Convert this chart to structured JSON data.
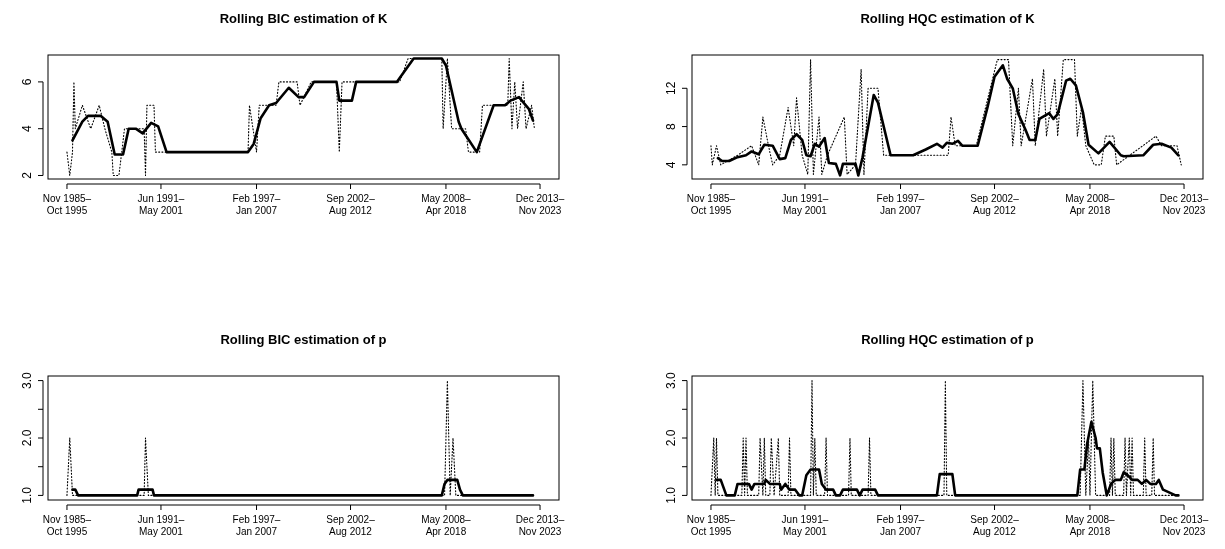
{
  "chart_data": [
    {
      "type": "line",
      "title": "Rolling BIC estimation of K",
      "xlim": [
        "1984-09-16",
        "2015-01-16"
      ],
      "xticks": [
        {
          "value": "1985-11",
          "label": "Nov 1985–\nOct 1995"
        },
        {
          "value": "1991-06",
          "label": "Jun 1991–\nMay 2001"
        },
        {
          "value": "1997-02",
          "label": "Feb 1997–\nJan 2007"
        },
        {
          "value": "2002-09",
          "label": "Sep 2002–\nAug 2012"
        },
        {
          "value": "2008-05",
          "label": "May 2008–\nApr 2018"
        },
        {
          "value": "2013-12",
          "label": "Dec 2013–\nNov 2023"
        }
      ],
      "ylim": [
        1.85,
        7.15
      ],
      "yticks": [
        2,
        4,
        6
      ],
      "series": [
        {
          "color": "#000000",
          "line_style": "dotted",
          "x": [
            "1985-11",
            "1986-01",
            "1986-03",
            "1986-04",
            "1986-05",
            "1986-10",
            "1987-04",
            "1987-10",
            "1988-02",
            "1988-07",
            "1988-08",
            "1988-12",
            "1989-02",
            "1989-04",
            "1990-06",
            "1990-07",
            "1990-08",
            "1991-01",
            "1991-02",
            "1991-06",
            "1996-08",
            "1996-09",
            "1997-02",
            "1997-04",
            "1998-04",
            "1998-06",
            "1999-07",
            "1999-09",
            "2000-05",
            "2001-11",
            "2002-01",
            "2002-03",
            "2005-08",
            "2006-02",
            "2008-02",
            "2008-03",
            "2008-06",
            "2008-09",
            "2009-07",
            "2009-09",
            "2010-05",
            "2010-07",
            "2012-01",
            "2012-02",
            "2012-04",
            "2012-06",
            "2012-08",
            "2012-12",
            "2013-02",
            "2013-06",
            "2013-08"
          ],
          "values": [
            3,
            2,
            3,
            6,
            4,
            5,
            4,
            5,
            4,
            3,
            2,
            2,
            3,
            4,
            4,
            2,
            5,
            5,
            3,
            3,
            3,
            5,
            3,
            5,
            5,
            6,
            6,
            5,
            6,
            6,
            3,
            6,
            6,
            7,
            7,
            4,
            7,
            4,
            4,
            3,
            3,
            5,
            5,
            7,
            4,
            6,
            4,
            6,
            4,
            5,
            4
          ]
        },
        {
          "color": "#000000",
          "line_style": "solid",
          "x": [
            "1986-03",
            "1986-10",
            "1987-02",
            "1987-11",
            "1988-04",
            "1988-09",
            "1989-03",
            "1989-07",
            "1989-12",
            "1990-05",
            "1990-11",
            "1991-04",
            "1991-10",
            "1996-08",
            "1996-12",
            "1997-05",
            "1997-11",
            "1998-04",
            "1999-01",
            "1999-08",
            "1999-12",
            "2000-07",
            "2001-11",
            "2002-01",
            "2002-10",
            "2003-01",
            "2005-06",
            "2006-06",
            "2008-02",
            "2008-05",
            "2009-02",
            "2009-04",
            "2010-03",
            "2011-03",
            "2011-11",
            "2012-03",
            "2012-09",
            "2012-11",
            "2013-04",
            "2013-07"
          ],
          "values": [
            3.5,
            4.3,
            4.55,
            4.55,
            4.3,
            2.9,
            2.9,
            4,
            4,
            3.8,
            4.25,
            4.1,
            3,
            3,
            3.35,
            4.45,
            5,
            5.1,
            5.75,
            5.35,
            5.35,
            6,
            6,
            5.2,
            5.2,
            6,
            6,
            7,
            7,
            6.7,
            4.3,
            4,
            3,
            5,
            5,
            5.2,
            5.35,
            5.2,
            4.85,
            4.35
          ]
        }
      ]
    },
    {
      "type": "line",
      "title": "Rolling HQC estimation of K",
      "xlim": [
        "1984-09-16",
        "2015-01-16"
      ],
      "xticks": [
        {
          "value": "1985-11",
          "label": "Nov 1985–\nOct 1995"
        },
        {
          "value": "1991-06",
          "label": "Jun 1991–\nMay 2001"
        },
        {
          "value": "1997-02",
          "label": "Feb 1997–\nJan 2007"
        },
        {
          "value": "2002-09",
          "label": "Sep 2002–\nAug 2012"
        },
        {
          "value": "2008-05",
          "label": "May 2008–\nApr 2018"
        },
        {
          "value": "2013-12",
          "label": "Dec 2013–\nNov 2023"
        }
      ],
      "ylim": [
        2.52,
        15.48
      ],
      "yticks": [
        4,
        8,
        12
      ],
      "series": [
        {
          "color": "#000000",
          "line_style": "dotted",
          "x": [
            "1985-11",
            "1985-12",
            "1986-03",
            "1986-06",
            "1987-06",
            "1988-04",
            "1988-09",
            "1988-12",
            "1989-04",
            "1989-07",
            "1989-12",
            "1990-06",
            "1990-10",
            "1990-12",
            "1991-04",
            "1991-08",
            "1991-10",
            "1991-12",
            "1992-04",
            "1992-06",
            "1992-10",
            "1993-10",
            "1993-12",
            "1994-06",
            "1994-10",
            "1994-12",
            "1995-03",
            "1995-10",
            "1996-02",
            "1996-04",
            "1999-12",
            "2000-02",
            "2000-05",
            "2001-08",
            "2002-06",
            "2002-11",
            "2003-07",
            "2003-10",
            "2004-02",
            "2004-04",
            "2004-12",
            "2005-02",
            "2005-08",
            "2005-10",
            "2006-04",
            "2006-06",
            "2006-10",
            "2007-06",
            "2007-08",
            "2007-11",
            "2008-02",
            "2008-08",
            "2009-01",
            "2009-04",
            "2009-10",
            "2009-12",
            "2012-04",
            "2012-08",
            "2013-07",
            "2013-10"
          ],
          "values": [
            6,
            4,
            6,
            4,
            5,
            6,
            4,
            9,
            6,
            4,
            5,
            10,
            6,
            11,
            5,
            3,
            15,
            3,
            9,
            3,
            5,
            9,
            3,
            4,
            14,
            3,
            12,
            12,
            5,
            5,
            5,
            9,
            6,
            6,
            12,
            15,
            15,
            6,
            12,
            6,
            13,
            6,
            14,
            7,
            13,
            7,
            15,
            15,
            7,
            10,
            6,
            4,
            4,
            7,
            7,
            4,
            7,
            6,
            6,
            4
          ]
        },
        {
          "color": "#000000",
          "line_style": "solid",
          "x": [
            "1986-04",
            "1986-07",
            "1986-12",
            "1987-06",
            "1987-12",
            "1988-04",
            "1988-09",
            "1989-01",
            "1989-07",
            "1989-12",
            "1990-04",
            "1990-08",
            "1990-12",
            "1991-04",
            "1991-07",
            "1991-10",
            "1992-01",
            "1992-04",
            "1992-08",
            "1992-11",
            "1993-04",
            "1993-07",
            "1993-09",
            "1994-06",
            "1994-08",
            "1994-11",
            "1995-07",
            "1995-10",
            "1996-07",
            "1997-11",
            "1998-08",
            "1999-04",
            "1999-08",
            "1999-11",
            "2000-03",
            "2000-07",
            "2000-10",
            "2001-09",
            "2002-04",
            "2002-09",
            "2003-03",
            "2003-06",
            "2003-10",
            "2004-02",
            "2004-07",
            "2004-10",
            "2005-02",
            "2005-05",
            "2005-12",
            "2006-03",
            "2006-06",
            "2006-12",
            "2007-03",
            "2007-07",
            "2007-12",
            "2008-04",
            "2008-11",
            "2009-07",
            "2010-03",
            "2010-05",
            "2011-07",
            "2012-02",
            "2012-08",
            "2013-03",
            "2013-08"
          ],
          "values": [
            4.7,
            4.4,
            4.4,
            4.8,
            5,
            5.4,
            5.1,
            6.1,
            6,
            4.6,
            4.7,
            6.6,
            7.2,
            6.6,
            5,
            4.9,
            6.2,
            5.9,
            6.8,
            4.2,
            4.1,
            2.9,
            4.1,
            4.1,
            2.9,
            4.8,
            11.3,
            10.5,
            5,
            5,
            5.6,
            6.2,
            5.8,
            6.3,
            6.2,
            6.5,
            6,
            6,
            10,
            13.2,
            14.4,
            13,
            12,
            9.3,
            7.7,
            6.6,
            6.6,
            8.8,
            9.4,
            8.8,
            9.3,
            12.8,
            13,
            12.3,
            9.5,
            6.1,
            5.2,
            6.4,
            5,
            4.9,
            5,
            6.1,
            6.2,
            5.8,
            5
          ]
        }
      ]
    },
    {
      "type": "line",
      "title": "Rolling BIC estimation of p",
      "xlim": [
        "1984-09-16",
        "2015-01-16"
      ],
      "xticks": [
        {
          "value": "1985-11",
          "label": "Nov 1985–\nOct 1995"
        },
        {
          "value": "1991-06",
          "label": "Jun 1991–\nMay 2001"
        },
        {
          "value": "1997-02",
          "label": "Feb 1997–\nJan 2007"
        },
        {
          "value": "2002-09",
          "label": "Sep 2002–\nAug 2012"
        },
        {
          "value": "2008-05",
          "label": "May 2008–\nApr 2018"
        },
        {
          "value": "2013-12",
          "label": "Dec 2013–\nNov 2023"
        }
      ],
      "ylim": [
        0.92,
        3.08
      ],
      "yticks": [
        {
          "value": 1,
          "label": "1.0"
        },
        {
          "value": 1.5,
          "label": null
        },
        {
          "value": 2,
          "label": "2.0"
        },
        {
          "value": 2.5,
          "label": null
        },
        {
          "value": 3,
          "label": "3.0"
        }
      ],
      "series": [
        {
          "color": "#000000",
          "line_style": "dotted",
          "x": [
            "1985-11",
            "1986-01",
            "1986-03",
            "1990-06",
            "1990-07",
            "1990-09",
            "2008-04",
            "2008-06",
            "2008-08",
            "2008-10",
            "2008-12",
            "2013-07"
          ],
          "values": [
            1,
            2,
            1,
            1,
            2,
            1,
            1,
            3,
            1,
            2,
            1,
            1
          ]
        },
        {
          "color": "#000000",
          "line_style": "solid",
          "x": [
            "1986-03",
            "1986-05",
            "1986-07",
            "1990-01",
            "1990-02",
            "1990-12",
            "1991-01",
            "2008-02",
            "2008-04",
            "2008-06",
            "2009-01",
            "2009-03",
            "2009-05",
            "2013-07"
          ],
          "values": [
            1.1,
            1.1,
            1,
            1,
            1.1,
            1.1,
            1,
            1,
            1.2,
            1.27,
            1.27,
            1.1,
            1,
            1
          ]
        }
      ]
    },
    {
      "type": "line",
      "title": "Rolling HQC estimation of p",
      "xlim": [
        "1984-09-16",
        "2015-01-16"
      ],
      "xticks": [
        {
          "value": "1985-11",
          "label": "Nov 1985–\nOct 1995"
        },
        {
          "value": "1991-06",
          "label": "Jun 1991–\nMay 2001"
        },
        {
          "value": "1997-02",
          "label": "Feb 1997–\nJan 2007"
        },
        {
          "value": "2002-09",
          "label": "Sep 2002–\nAug 2012"
        },
        {
          "value": "2008-05",
          "label": "May 2008–\nApr 2018"
        },
        {
          "value": "2013-12",
          "label": "Dec 2013–\nNov 2023"
        }
      ],
      "ylim": [
        0.92,
        3.08
      ],
      "yticks": [
        {
          "value": 1,
          "label": "1.0"
        },
        {
          "value": 1.5,
          "label": null
        },
        {
          "value": 2,
          "label": "2.0"
        },
        {
          "value": 2.5,
          "label": null
        },
        {
          "value": 3,
          "label": "3.0"
        }
      ],
      "series": [
        {
          "color": "#000000",
          "line_style": "dotted",
          "x": [
            "1985-11",
            "1986-01",
            "1986-02",
            "1986-03",
            "1986-04",
            "1986-05",
            "1987-09",
            "1987-10",
            "1987-11",
            "1987-12",
            "1988-01",
            "1988-09",
            "1988-10",
            "1988-12",
            "1989-01",
            "1989-02",
            "1989-05",
            "1989-06",
            "1989-08",
            "1989-11",
            "1989-12",
            "1990-01",
            "1990-06",
            "1990-07",
            "1990-08",
            "1991-10",
            "1991-11",
            "1991-12",
            "1992-01",
            "1992-02",
            "1992-08",
            "1992-09",
            "1992-10",
            "1994-01",
            "1994-02",
            "1994-03",
            "1995-03",
            "1995-04",
            "1995-05",
            "1999-09",
            "1999-10",
            "1999-11",
            "2007-10",
            "2007-12",
            "2008-02",
            "2008-04",
            "2008-05",
            "2008-07",
            "2008-09",
            "2009-07",
            "2009-08",
            "2009-09",
            "2009-10",
            "2009-11",
            "2010-05",
            "2010-06",
            "2010-07",
            "2010-09",
            "2010-10",
            "2010-11",
            "2010-12",
            "2011-07",
            "2011-08",
            "2011-09",
            "2012-01",
            "2012-02",
            "2012-03",
            "2013-07"
          ],
          "values": [
            1,
            2,
            1,
            2,
            1,
            1,
            1,
            2,
            1,
            2,
            1,
            1,
            2,
            1,
            2,
            1,
            1,
            2,
            1,
            2,
            1,
            1,
            1,
            2,
            1,
            1,
            3,
            1,
            2,
            1,
            1,
            2,
            1,
            1,
            2,
            1,
            1,
            2,
            1,
            1,
            3,
            1,
            1,
            3,
            1,
            2,
            1,
            3,
            1,
            1,
            2,
            1,
            2,
            1,
            1,
            2,
            1,
            2,
            1,
            2,
            1,
            1,
            2,
            1,
            1,
            2,
            1,
            1
          ]
        },
        {
          "color": "#000000",
          "line_style": "solid",
          "x": [
            "1986-03",
            "1986-06",
            "1986-10",
            "1987-04",
            "1987-06",
            "1988-02",
            "1988-04",
            "1988-06",
            "1989-01",
            "1989-02",
            "1989-05",
            "1989-12",
            "1990-01",
            "1990-04",
            "1990-07",
            "1990-11",
            "1991-02",
            "1991-04",
            "1991-07",
            "1991-10",
            "1992-04",
            "1992-06",
            "1992-09",
            "1993-02",
            "1993-04",
            "1993-07",
            "1993-09",
            "1994-07",
            "1994-09",
            "1994-11",
            "1995-08",
            "1995-10",
            "1999-04",
            "1999-06",
            "2000-03",
            "2000-05",
            "2007-08",
            "2007-10",
            "2008-01",
            "2008-03",
            "2008-06",
            "2008-09",
            "2008-10",
            "2008-12",
            "2009-02",
            "2009-05",
            "2009-08",
            "2009-11",
            "2010-03",
            "2010-05",
            "2010-08",
            "2010-11",
            "2011-03",
            "2011-06",
            "2011-09",
            "2011-12",
            "2012-04",
            "2012-06",
            "2012-09",
            "2013-06",
            "2013-08"
          ],
          "values": [
            1.27,
            1.27,
            1,
            1,
            1.2,
            1.2,
            1.1,
            1.2,
            1.2,
            1.27,
            1.2,
            1.2,
            1.1,
            1.2,
            1.1,
            1.1,
            1,
            1,
            1.35,
            1.45,
            1.45,
            1.2,
            1.1,
            1.1,
            1,
            1,
            1.1,
            1.1,
            1,
            1.1,
            1.1,
            1,
            1,
            1.37,
            1.37,
            1,
            1,
            1.45,
            1.45,
            1.9,
            2.28,
            2,
            1.82,
            1.82,
            1.4,
            1,
            1.2,
            1.27,
            1.27,
            1.4,
            1.35,
            1.27,
            1.27,
            1.2,
            1.27,
            1.2,
            1.2,
            1.27,
            1.1,
            1,
            1
          ]
        }
      ]
    }
  ]
}
